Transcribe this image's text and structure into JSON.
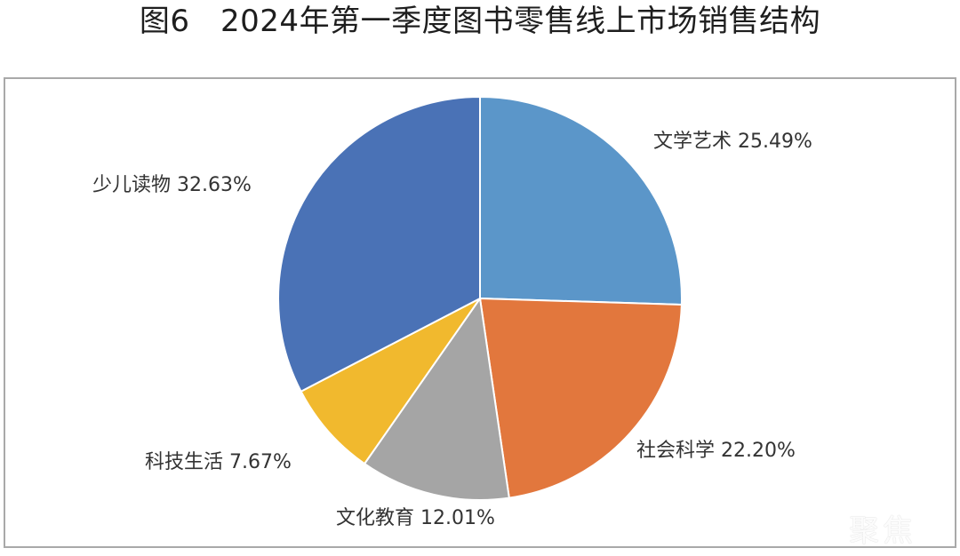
{
  "title": "图6　2024年第一季度图书零售线上市场销售结构",
  "watermark": "聚焦",
  "chart_data": {
    "type": "pie",
    "title": "图6 2024年第一季度图书零售线上市场销售结构",
    "start_angle_deg": 0,
    "direction": "clockwise",
    "categories": [
      "文学艺术",
      "社会科学",
      "文化教育",
      "科技生活",
      "少儿读物"
    ],
    "values": [
      25.49,
      22.2,
      12.01,
      7.67,
      32.63
    ],
    "unit": "%",
    "colors": [
      "#5B96C9",
      "#E2773D",
      "#A5A5A5",
      "#F1B92E",
      "#4A72B6"
    ],
    "labels": [
      "文学艺术 25.49%",
      "社会科学 22.20%",
      "文化教育 12.01%",
      "科技生活 7.67%",
      "少儿读物 32.63%"
    ],
    "legend": "none (data labels outside slices)"
  }
}
